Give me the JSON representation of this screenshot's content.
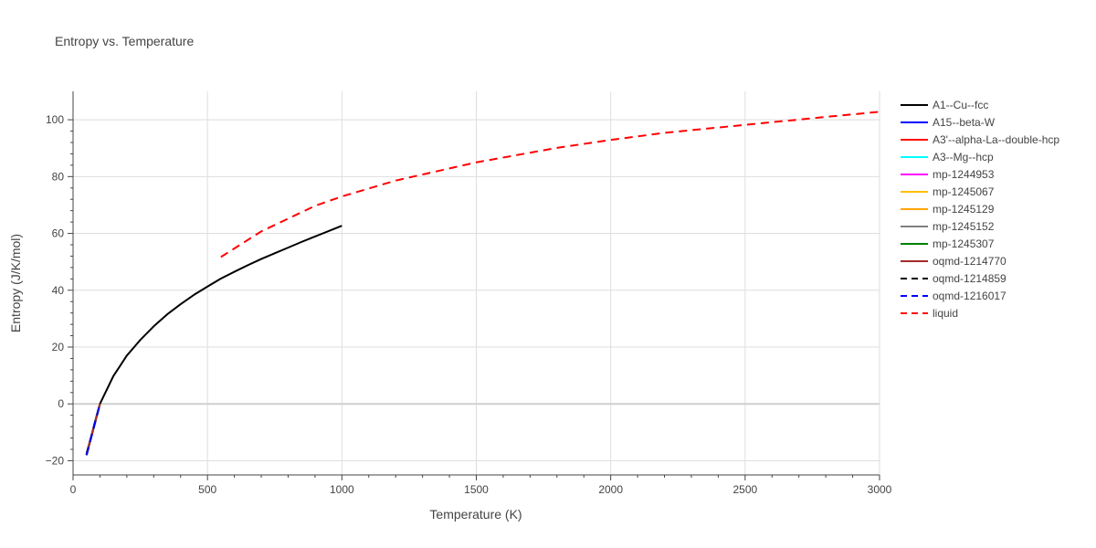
{
  "chart_data": {
    "type": "line",
    "title": "Entropy vs. Temperature",
    "xlabel": "Temperature (K)",
    "ylabel": "Entropy (J/K/mol)",
    "xlim": [
      0,
      3000
    ],
    "ylim": [
      -25,
      110
    ],
    "x_ticks": [
      0,
      500,
      1000,
      1500,
      2000,
      2500,
      3000
    ],
    "y_ticks": [
      -20,
      0,
      20,
      40,
      60,
      80,
      100
    ],
    "grid": true,
    "legend_position": "right",
    "series": [
      {
        "name": "A1--Cu--fcc",
        "color": "#000000",
        "dash": "solid",
        "x": [
          50,
          60,
          70,
          80,
          90,
          100,
          150,
          200,
          250,
          300,
          350,
          400,
          450,
          500,
          550,
          600,
          650,
          700,
          750,
          800,
          850,
          900,
          950,
          1000
        ],
        "y": [
          -17.5,
          -14,
          -10.5,
          -6.8,
          -3.3,
          0,
          9.8,
          17,
          22.5,
          27.3,
          31.5,
          35.1,
          38.4,
          41.3,
          44.1,
          46.5,
          48.8,
          51,
          53,
          55,
          57,
          58.9,
          60.8,
          62.7
        ]
      },
      {
        "name": "A15--beta-W",
        "color": "#0000ff",
        "dash": "solid",
        "x": [
          50,
          75,
          100
        ],
        "y": [
          -18,
          -9,
          0
        ]
      },
      {
        "name": "A3'--alpha-La--double-hcp",
        "color": "#ff0000",
        "dash": "solid",
        "x": [
          50,
          75,
          100
        ],
        "y": [
          -18,
          -9,
          0
        ]
      },
      {
        "name": "A3--Mg--hcp",
        "color": "#00ffff",
        "dash": "solid",
        "x": [
          50,
          75,
          100
        ],
        "y": [
          -18,
          -9,
          0
        ]
      },
      {
        "name": "mp-1244953",
        "color": "#ff00ff",
        "dash": "solid",
        "x": [
          50,
          75,
          100
        ],
        "y": [
          -18,
          -9,
          0
        ]
      },
      {
        "name": "mp-1245067",
        "color": "#ffbf00",
        "dash": "solid",
        "x": [
          50,
          75,
          100
        ],
        "y": [
          -18,
          -9,
          0
        ]
      },
      {
        "name": "mp-1245129",
        "color": "#ffa500",
        "dash": "solid",
        "x": [
          50,
          75,
          100
        ],
        "y": [
          -18,
          -9,
          0
        ]
      },
      {
        "name": "mp-1245152",
        "color": "#808080",
        "dash": "solid",
        "x": [
          50,
          75,
          100
        ],
        "y": [
          -18,
          -9,
          0
        ]
      },
      {
        "name": "mp-1245307",
        "color": "#008000",
        "dash": "solid",
        "x": [
          50,
          75,
          100
        ],
        "y": [
          -18,
          -9,
          0
        ]
      },
      {
        "name": "oqmd-1214770",
        "color": "#a52a2a",
        "dash": "solid",
        "x": [
          50,
          75,
          100
        ],
        "y": [
          -18,
          -9,
          0
        ]
      },
      {
        "name": "oqmd-1214859",
        "color": "#000000",
        "dash": "dash",
        "x": [
          50,
          75,
          100
        ],
        "y": [
          -18,
          -9,
          0
        ]
      },
      {
        "name": "oqmd-1216017",
        "color": "#0000ff",
        "dash": "dash",
        "x": [
          50,
          75,
          100
        ],
        "y": [
          -18,
          -9,
          0
        ]
      },
      {
        "name": "liquid",
        "color": "#ff0000",
        "dash": "dash",
        "x": [
          550,
          700,
          900,
          1000,
          1200,
          1500,
          1800,
          2000,
          2200,
          2500,
          2800,
          3000
        ],
        "y": [
          51.7,
          60.7,
          69.7,
          73,
          78.6,
          85,
          90.1,
          92.9,
          95.4,
          98.2,
          101,
          102.8
        ]
      }
    ]
  }
}
